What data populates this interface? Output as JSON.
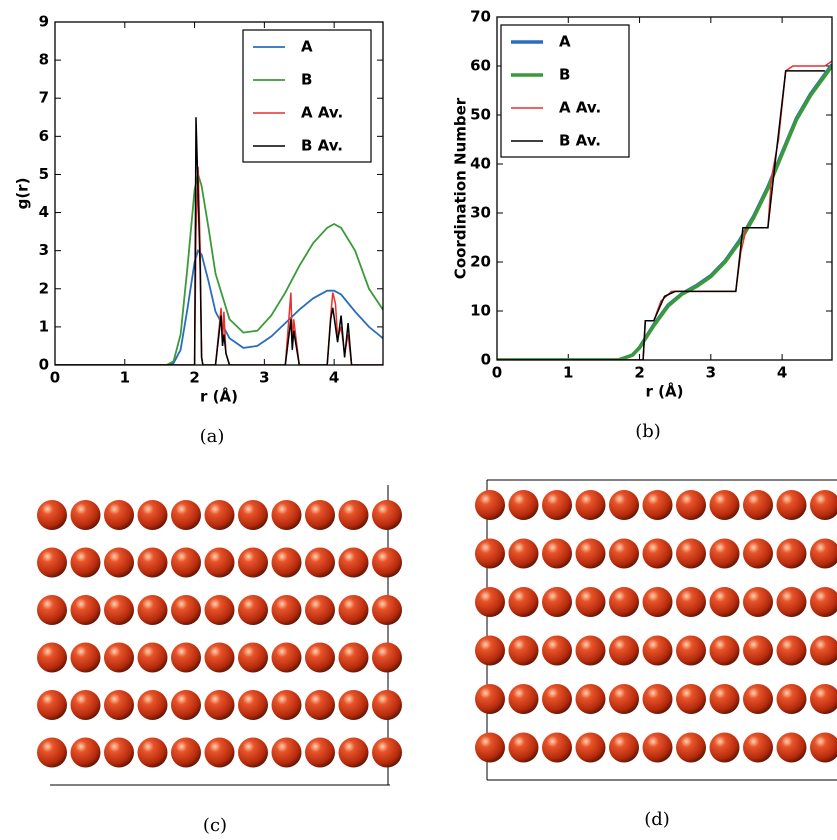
{
  "chart_data": [
    {
      "type": "line",
      "caption": "(a)",
      "xlabel": "r (Å)",
      "ylabel": "g(r)",
      "xlim": [
        0,
        4.7
      ],
      "ylim": [
        0,
        9
      ],
      "xticks": [
        0,
        1,
        2,
        3,
        4
      ],
      "yticks": [
        0,
        1,
        2,
        3,
        4,
        5,
        6,
        7,
        8,
        9
      ],
      "legend": "upper right",
      "series": [
        {
          "name": "A",
          "color": "#2a6ebb",
          "x": [
            0,
            1.6,
            1.7,
            1.8,
            1.9,
            2.0,
            2.05,
            2.1,
            2.2,
            2.3,
            2.5,
            2.7,
            2.9,
            3.1,
            3.3,
            3.5,
            3.7,
            3.9,
            4.0,
            4.1,
            4.3,
            4.5,
            4.7
          ],
          "values": [
            0,
            0,
            0.05,
            0.4,
            1.5,
            2.7,
            3.0,
            2.9,
            2.2,
            1.4,
            0.7,
            0.45,
            0.5,
            0.75,
            1.1,
            1.45,
            1.75,
            1.95,
            1.95,
            1.85,
            1.4,
            1.0,
            0.7
          ]
        },
        {
          "name": "B",
          "color": "#3a9a3a",
          "x": [
            0,
            1.6,
            1.7,
            1.8,
            1.9,
            2.0,
            2.05,
            2.1,
            2.2,
            2.3,
            2.5,
            2.7,
            2.9,
            3.1,
            3.3,
            3.5,
            3.7,
            3.9,
            4.0,
            4.1,
            4.3,
            4.5,
            4.7
          ],
          "values": [
            0,
            0,
            0.1,
            0.8,
            2.6,
            4.6,
            5.0,
            4.7,
            3.6,
            2.4,
            1.2,
            0.85,
            0.9,
            1.3,
            1.9,
            2.6,
            3.2,
            3.6,
            3.7,
            3.6,
            3.0,
            2.0,
            1.45
          ]
        },
        {
          "name": "A Av.",
          "color": "#e8312b",
          "x": [
            0,
            2.0,
            2.02,
            2.05,
            2.08,
            2.1,
            2.12,
            2.3,
            2.38,
            2.4,
            2.42,
            2.45,
            2.5,
            3.3,
            3.38,
            3.4,
            3.42,
            3.5,
            3.9,
            3.95,
            3.98,
            4.02,
            4.05,
            4.1,
            4.15,
            4.2,
            4.25,
            4.3,
            4.7
          ],
          "values": [
            0,
            0,
            3.5,
            5.2,
            3,
            0.2,
            0,
            0,
            1.5,
            0.6,
            1.4,
            0.3,
            0,
            0,
            1.9,
            0.5,
            1.2,
            0,
            0,
            1.3,
            1.9,
            1.6,
            0.7,
            1.0,
            0.3,
            0.8,
            0,
            0,
            0
          ]
        },
        {
          "name": "B Av.",
          "color": "#000000",
          "x": [
            0,
            2.0,
            2.02,
            2.05,
            2.08,
            2.1,
            2.12,
            2.3,
            2.38,
            2.4,
            2.42,
            2.45,
            2.5,
            3.3,
            3.38,
            3.4,
            3.42,
            3.5,
            3.9,
            3.95,
            3.98,
            4.02,
            4.05,
            4.1,
            4.15,
            4.2,
            4.25,
            4.3,
            4.7
          ],
          "values": [
            0,
            0,
            6.5,
            4.5,
            2.5,
            0.2,
            0,
            0,
            1.3,
            0.5,
            0.8,
            0.3,
            0,
            0,
            1.2,
            0.4,
            0.9,
            0,
            0,
            1.2,
            1.5,
            1.0,
            0.6,
            1.3,
            0.2,
            1.1,
            0,
            0,
            0
          ]
        }
      ]
    },
    {
      "type": "line",
      "caption": "(b)",
      "xlabel": "r (Å)",
      "ylabel": "Coordination Number",
      "xlim": [
        0,
        4.7
      ],
      "ylim": [
        0,
        70
      ],
      "xticks": [
        0,
        1,
        2,
        3,
        4
      ],
      "yticks": [
        0,
        10,
        20,
        30,
        40,
        50,
        60,
        70
      ],
      "legend": "upper left",
      "series": [
        {
          "name": "A",
          "color": "#2a6ebb",
          "x": [
            0,
            1.7,
            1.9,
            2.0,
            2.2,
            2.4,
            2.6,
            2.8,
            3.0,
            3.2,
            3.4,
            3.6,
            3.8,
            4.0,
            4.2,
            4.4,
            4.6,
            4.7
          ],
          "values": [
            0,
            0,
            1,
            2.6,
            7.2,
            11.2,
            13.6,
            15.2,
            17.2,
            20.2,
            24.3,
            29.3,
            35.3,
            42.3,
            49.3,
            54.3,
            58.3,
            60.3
          ]
        },
        {
          "name": "B",
          "color": "#3a9a3a",
          "x": [
            0,
            1.7,
            1.9,
            2.0,
            2.2,
            2.4,
            2.6,
            2.8,
            3.0,
            3.2,
            3.4,
            3.6,
            3.8,
            4.0,
            4.2,
            4.4,
            4.6,
            4.7
          ],
          "values": [
            0,
            0,
            1,
            2.5,
            7,
            11,
            13.5,
            15,
            17,
            20,
            24,
            29,
            35,
            42,
            49,
            54,
            58,
            60
          ]
        },
        {
          "name": "A Av.",
          "color": "#e8312b",
          "x": [
            0,
            2.05,
            2.08,
            2.2,
            2.3,
            2.45,
            3.35,
            3.42,
            3.5,
            3.8,
            3.85,
            3.95,
            4.05,
            4.15,
            4.6,
            4.7
          ],
          "values": [
            0,
            0,
            8,
            8,
            12,
            14,
            14,
            22,
            27,
            27,
            37,
            45,
            59,
            60,
            60,
            61
          ]
        },
        {
          "name": "B Av.",
          "color": "#000000",
          "x": [
            0,
            2.05,
            2.08,
            2.2,
            2.35,
            2.5,
            3.35,
            3.45,
            3.8,
            3.9,
            4.05,
            4.6
          ],
          "values": [
            0,
            0,
            8,
            8,
            13,
            14,
            14,
            27,
            27,
            40,
            59,
            59
          ]
        }
      ]
    }
  ],
  "images": [
    {
      "caption": "(c)"
    },
    {
      "caption": "(d)"
    }
  ]
}
